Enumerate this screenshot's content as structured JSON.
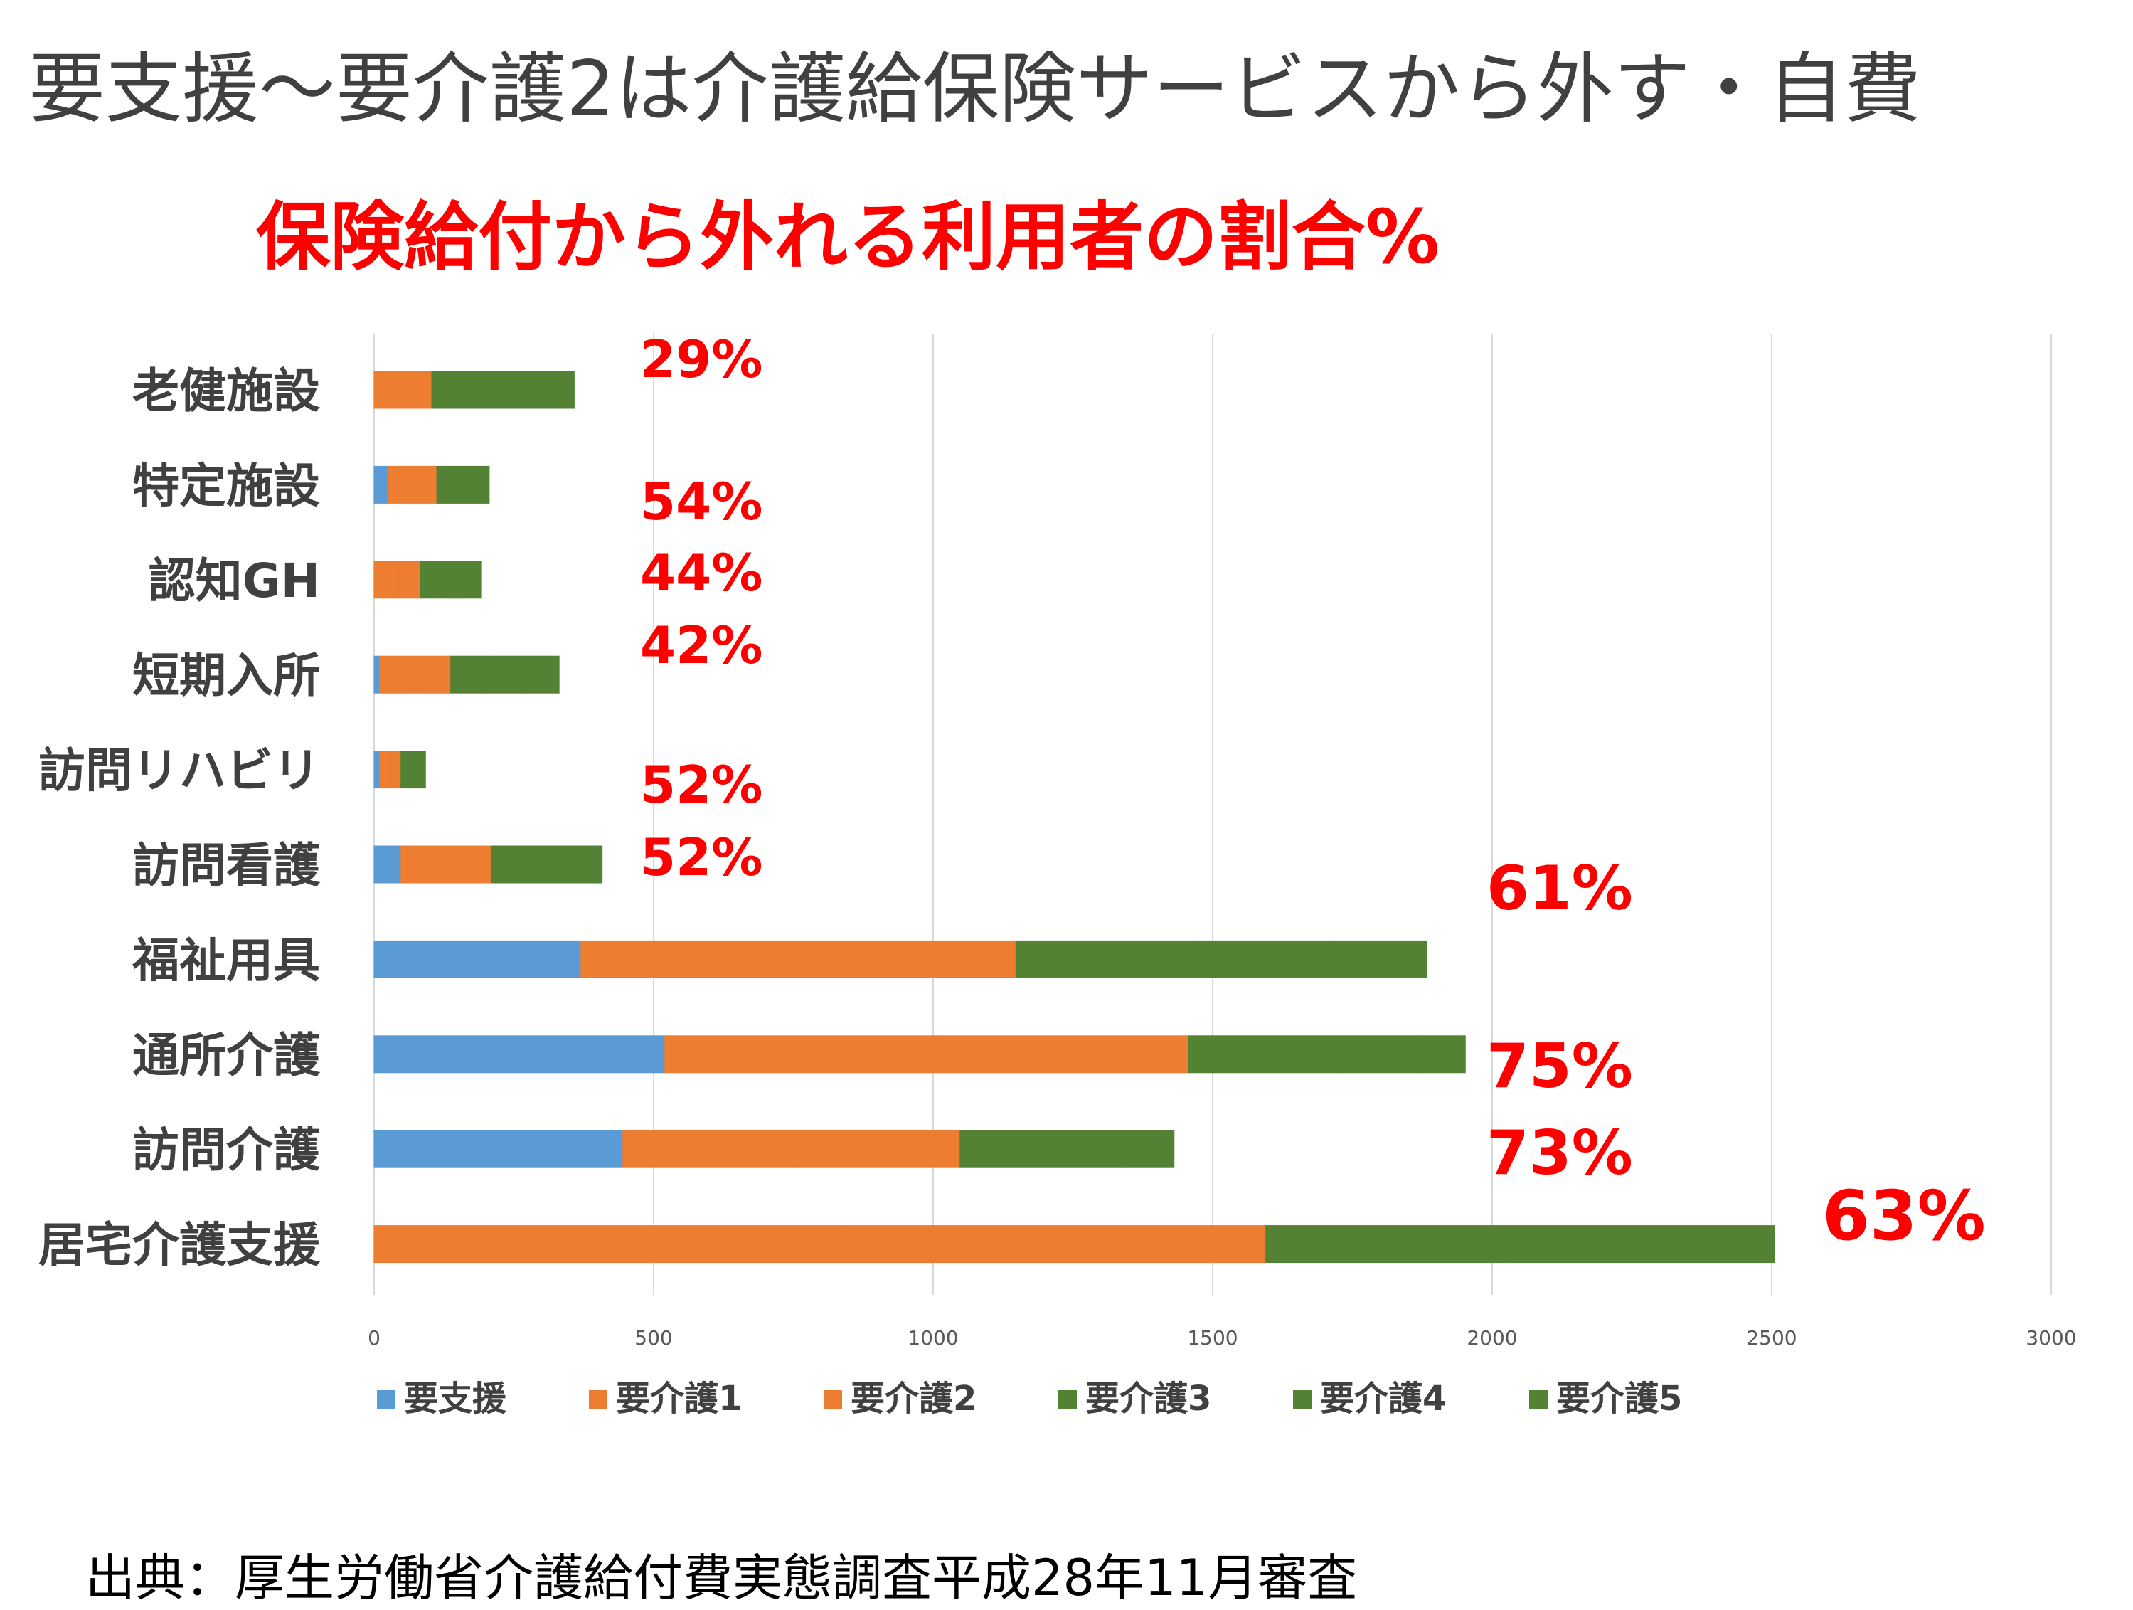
{
  "slide": {
    "title": "要支援～要介護2は介護給保険サービスから外す・自費",
    "source": "出典：厚生労働省介護給付費実態調査平成28年11月審査"
  },
  "colors": {
    "support": "#5b9bd5",
    "care_low": "#ed7d31",
    "care_high": "#548235",
    "grid": "#d9d9d9",
    "annotation": "#ff0000"
  },
  "chart_data": {
    "type": "bar",
    "orientation": "horizontal",
    "stacked": true,
    "title": "保険給付から外れる利用者の割合%",
    "categories": [
      "老健施設",
      "特定施設",
      "認知GH",
      "短期入所",
      "訪問リハビリ",
      "訪問看護",
      "福祉用具",
      "通所介護",
      "訪問介護",
      "居宅介護支援"
    ],
    "series": [
      {
        "name": "要支援",
        "color": "#5b9bd5",
        "values": [
          0,
          25,
          0,
          10,
          10,
          48,
          370,
          520,
          445,
          0
        ]
      },
      {
        "name": "要介護1",
        "color": "#ed7d31",
        "values": [
          55,
          45,
          45,
          65,
          20,
          80,
          390,
          485,
          305,
          835
        ]
      },
      {
        "name": "要介護2",
        "color": "#ed7d31",
        "values": [
          48,
          42,
          38,
          62,
          18,
          82,
          388,
          452,
          298,
          760
        ]
      },
      {
        "name": "要介護3",
        "color": "#548235",
        "values": [
          82,
          50,
          50,
          66,
          20,
          85,
          320,
          275,
          170,
          440
        ]
      },
      {
        "name": "要介護4",
        "color": "#548235",
        "values": [
          75,
          22,
          25,
          66,
          12,
          65,
          245,
          145,
          125,
          290
        ]
      },
      {
        "name": "要介護5",
        "color": "#548235",
        "values": [
          98,
          22,
          33,
          62,
          12,
          48,
          170,
          75,
          88,
          180
        ]
      }
    ],
    "annotations": [
      "29%",
      "54%",
      "44%",
      "42%",
      "52%",
      "52%",
      "61%",
      "75%",
      "73%",
      "63%"
    ],
    "xlim": [
      0,
      3000
    ],
    "xticks": [
      0,
      500,
      1000,
      1500,
      2000,
      2500,
      3000
    ],
    "grid": true,
    "legend_position": "bottom"
  }
}
